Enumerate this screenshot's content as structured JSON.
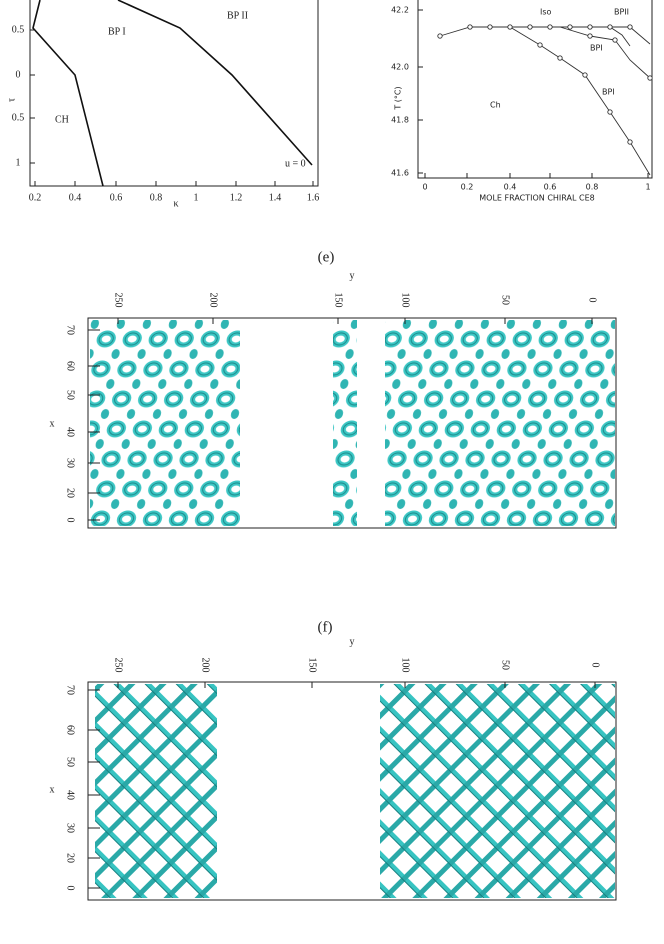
{
  "left_plot": {
    "y_label": "τ",
    "y_ticks": [
      "0.5",
      "0",
      "0.5",
      "1"
    ],
    "x_label": "κ",
    "x_ticks": [
      "0.2",
      "0.4",
      "0.6",
      "0.8",
      "1",
      "1.2",
      "1.4",
      "1.6"
    ],
    "regions": [
      "BP I",
      "BP II",
      "CH"
    ],
    "annotation": "u = 0"
  },
  "right_plot": {
    "y_label": "T (°C)",
    "y_ticks": [
      "42.2",
      "42.0",
      "41.8",
      "41.6"
    ],
    "x_label": "MOLE FRACTION CHIRAL CE8",
    "x_ticks": [
      "0",
      "0.2",
      "0.4",
      "0.6",
      "0.8",
      "1"
    ],
    "regions": [
      "Iso",
      "BPII",
      "BPI",
      "BPI",
      "Ch"
    ]
  },
  "panel_e": {
    "caption": "(e)",
    "top_axis_label": "y",
    "top_ticks": [
      "250",
      "200",
      "150",
      "100",
      "50",
      "0"
    ],
    "left_axis_label": "x",
    "left_ticks": [
      "70",
      "60",
      "50",
      "40",
      "30",
      "20",
      "0"
    ]
  },
  "panel_f": {
    "caption": "(f)",
    "top_axis_label": "y",
    "top_ticks": [
      "250",
      "200",
      "150",
      "100",
      "50",
      "0"
    ],
    "left_axis_label": "x",
    "left_ticks": [
      "70",
      "60",
      "50",
      "40",
      "30",
      "20",
      "0"
    ]
  }
}
